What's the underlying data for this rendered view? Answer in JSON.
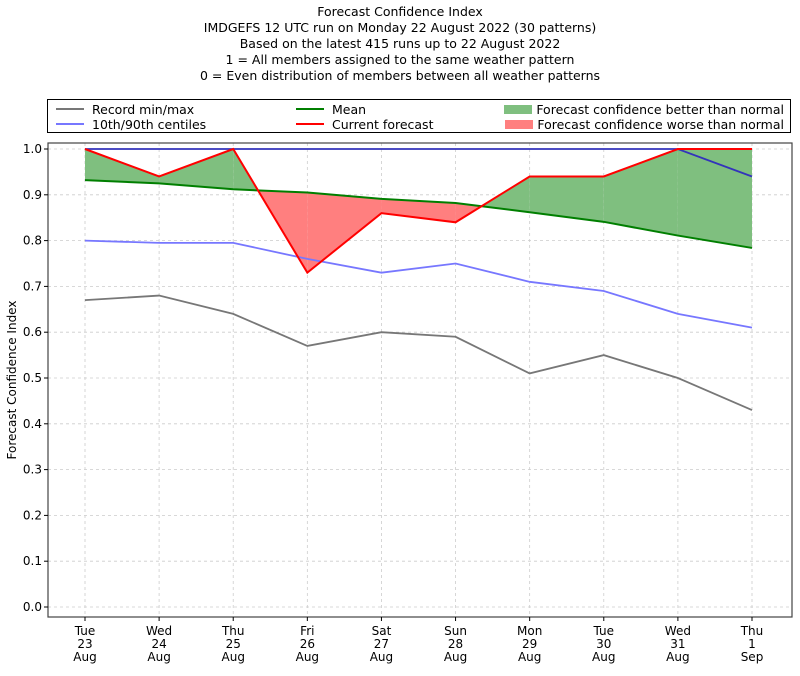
{
  "title_lines": [
    "Forecast Confidence Index",
    "IMDGEFS 12 UTC run on Monday 22 August 2022 (30 patterns)",
    "Based on the latest 415 runs up to 22 August 2022",
    "1 = All members assigned to the same weather pattern",
    "0 = Even distribution of members between all weather patterns"
  ],
  "legend": {
    "record": {
      "label": "Record min/max",
      "color": "#777777"
    },
    "centiles": {
      "label": "10th/90th centiles",
      "color": "#7777ff"
    },
    "mean": {
      "label": "Mean",
      "color": "#007f00"
    },
    "current": {
      "label": "Current forecast",
      "color": "#ff0000"
    },
    "better": {
      "label": "Forecast confidence better than normal",
      "color": "#7fbf7f"
    },
    "worse": {
      "label": "Forecast confidence worse than normal",
      "color": "#ff7f7f"
    }
  },
  "chart_data": {
    "type": "line",
    "title": "Forecast Confidence Index",
    "xlabel": "",
    "ylabel": "Forecast Confidence Index",
    "ylim": [
      0.0,
      1.0
    ],
    "yticks": [
      "0.0",
      "0.1",
      "0.2",
      "0.3",
      "0.4",
      "0.5",
      "0.6",
      "0.7",
      "0.8",
      "0.9",
      "1.0"
    ],
    "grid": true,
    "legend_position": "top",
    "categories": [
      [
        "Tue",
        "23",
        "Aug"
      ],
      [
        "Wed",
        "24",
        "Aug"
      ],
      [
        "Thu",
        "25",
        "Aug"
      ],
      [
        "Fri",
        "26",
        "Aug"
      ],
      [
        "Sat",
        "27",
        "Aug"
      ],
      [
        "Sun",
        "28",
        "Aug"
      ],
      [
        "Mon",
        "29",
        "Aug"
      ],
      [
        "Tue",
        "30",
        "Aug"
      ],
      [
        "Wed",
        "31",
        "Aug"
      ],
      [
        "Thu",
        "1",
        "Sep"
      ]
    ],
    "series": [
      {
        "name": "Record min/max",
        "key": "record",
        "color": "#777777",
        "values": [
          0.67,
          0.68,
          0.64,
          0.57,
          0.6,
          0.59,
          0.51,
          0.55,
          0.5,
          0.43
        ]
      },
      {
        "name": "10th centile",
        "key": "p10",
        "color": "#7777ff",
        "values": [
          0.8,
          0.795,
          0.795,
          0.76,
          0.73,
          0.75,
          0.71,
          0.69,
          0.64,
          0.61
        ]
      },
      {
        "name": "90th centile",
        "key": "p90",
        "color": "#3333bb",
        "values": [
          1.0,
          1.0,
          1.0,
          1.0,
          1.0,
          1.0,
          1.0,
          1.0,
          1.0,
          0.94
        ]
      },
      {
        "name": "Mean",
        "key": "mean",
        "color": "#007f00",
        "values": [
          0.932,
          0.925,
          0.912,
          0.905,
          0.891,
          0.882,
          0.862,
          0.841,
          0.811,
          0.784
        ]
      },
      {
        "name": "Current forecast",
        "key": "current",
        "color": "#ff0000",
        "values": [
          1.0,
          0.94,
          1.0,
          0.73,
          0.86,
          0.84,
          0.94,
          0.94,
          1.0,
          1.0
        ]
      }
    ]
  }
}
